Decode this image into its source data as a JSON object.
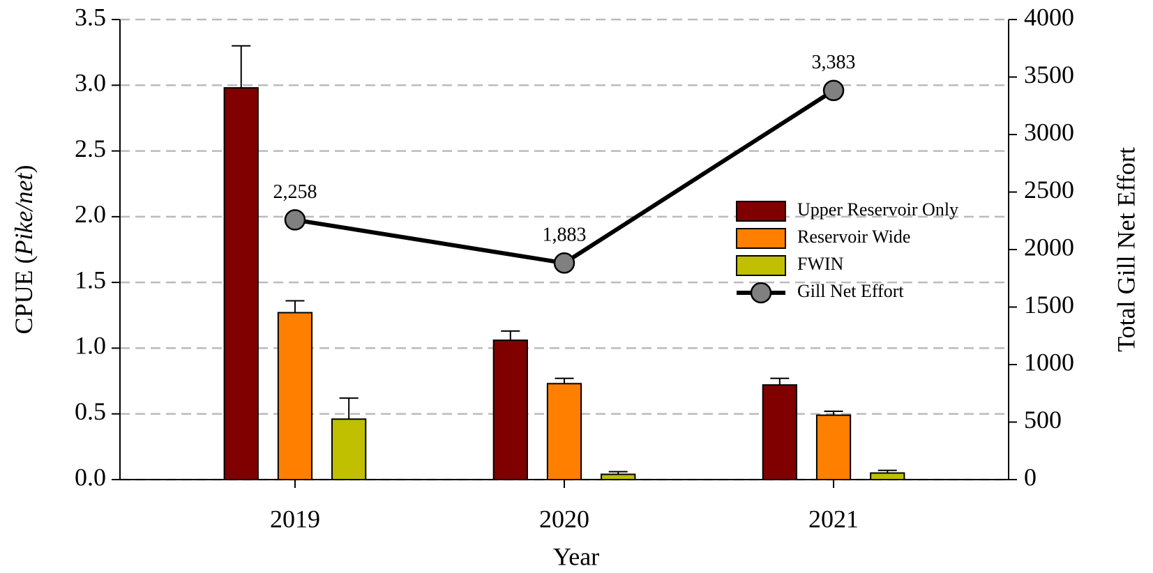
{
  "chart_data": {
    "type": "bar",
    "x_label": "Year",
    "y_label_parts": [
      "CPUE (",
      "Pike/net",
      ")"
    ],
    "y2_label": "Total Gill Net Effort",
    "categories": [
      "2019",
      "2020",
      "2021"
    ],
    "series": [
      {
        "name": "Upper Reservoir Only",
        "color": "#800000",
        "values": [
          2.98,
          1.06,
          0.72
        ],
        "errors": [
          0.32,
          0.07,
          0.05
        ]
      },
      {
        "name": "Reservoir Wide",
        "color": "#ff8000",
        "values": [
          1.27,
          0.73,
          0.49
        ],
        "errors": [
          0.09,
          0.04,
          0.03
        ]
      },
      {
        "name": "FWIN",
        "color": "#c0c000",
        "values": [
          0.46,
          0.04,
          0.05
        ],
        "errors": [
          0.16,
          0.02,
          0.02
        ]
      },
      {
        "name": "Gill Net Effort",
        "type": "line",
        "axis": "y2",
        "color": "#000000",
        "marker_color": "#808080",
        "values": [
          2258,
          1883,
          3383
        ],
        "value_labels": [
          "2,258",
          "1,883",
          "3,383"
        ]
      }
    ],
    "ylim": [
      0,
      3.5
    ],
    "yticks": [
      {
        "value": 0,
        "label": "0.0"
      },
      0.5,
      {
        "value": 1,
        "label": "1.0"
      },
      1.5,
      {
        "value": 2,
        "label": "2.0"
      },
      2.5,
      {
        "value": 3,
        "label": "3.0"
      },
      3.5
    ],
    "y2lim": [
      0,
      4000
    ],
    "y2ticks": [
      0,
      500,
      1000,
      1500,
      2000,
      2500,
      3000,
      3500,
      4000
    ],
    "grid": true,
    "legend": "right"
  }
}
